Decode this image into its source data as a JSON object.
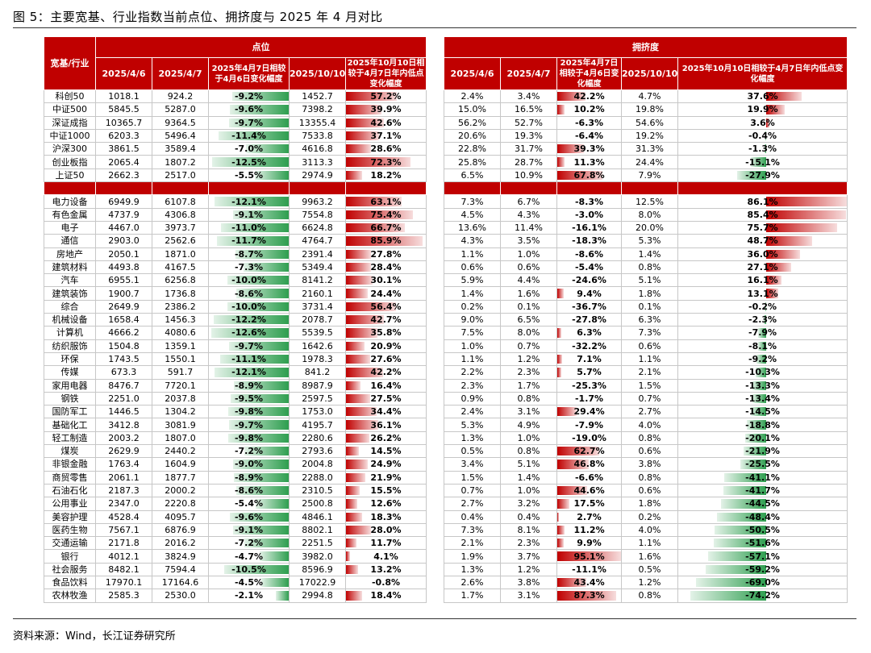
{
  "title": "图 5：主要宽基、行业指数当前点位、拥挤度与 2025 年 4 月对比",
  "source": "资料来源：Wind，长江证券研究所",
  "colors": {
    "header": "#c00000",
    "up": "#c00000",
    "down": "#2e9e4f"
  },
  "header": {
    "row_label": "宽基/行业",
    "group_points": "点位",
    "group_crowd": "拥挤度",
    "points_cols": [
      "2025/4/6",
      "2025/4/7",
      "2025年4月7日相较于4月6日变化幅度",
      "2025/10/10",
      "2025年10月10日相较于4月7日年内低点变化幅度"
    ],
    "crowd_cols": [
      "2025/4/6",
      "2025/4/7",
      "2025年4月7日相较于4月6日变化幅度",
      "2025/10/10",
      "2025年10月10日相较于4月7日年内低点变化幅度"
    ]
  },
  "broad_rows": [
    {
      "name": "科创50",
      "p1": "1018.1",
      "p2": "924.2",
      "pc": "-9.2%",
      "pcv": -9.2,
      "p3": "1452.7",
      "pd": "57.2%",
      "pdv": 57.2,
      "c1": "2.4%",
      "c2": "3.4%",
      "cc": "42.2%",
      "ccv": 42.2,
      "c3": "4.7%",
      "cd": "37.6%",
      "cdv": 37.6
    },
    {
      "name": "中证500",
      "p1": "5845.5",
      "p2": "5287.0",
      "pc": "-9.6%",
      "pcv": -9.6,
      "p3": "7398.2",
      "pd": "39.9%",
      "pdv": 39.9,
      "c1": "15.0%",
      "c2": "16.5%",
      "cc": "10.2%",
      "ccv": 10.2,
      "c3": "19.8%",
      "cd": "19.9%",
      "cdv": 19.9
    },
    {
      "name": "深证成指",
      "p1": "10365.7",
      "p2": "9364.5",
      "pc": "-9.7%",
      "pcv": -9.7,
      "p3": "13355.4",
      "pd": "42.6%",
      "pdv": 42.6,
      "c1": "56.2%",
      "c2": "52.7%",
      "cc": "-6.3%",
      "ccv": -6.3,
      "c3": "54.6%",
      "cd": "3.6%",
      "cdv": 3.6
    },
    {
      "name": "中证1000",
      "p1": "6203.3",
      "p2": "5496.4",
      "pc": "-11.4%",
      "pcv": -11.4,
      "p3": "7533.8",
      "pd": "37.1%",
      "pdv": 37.1,
      "c1": "20.6%",
      "c2": "19.3%",
      "cc": "-6.4%",
      "ccv": -6.4,
      "c3": "19.2%",
      "cd": "-0.4%",
      "cdv": -0.4
    },
    {
      "name": "沪深300",
      "p1": "3861.5",
      "p2": "3589.4",
      "pc": "-7.0%",
      "pcv": -7.0,
      "p3": "4616.8",
      "pd": "28.6%",
      "pdv": 28.6,
      "c1": "22.8%",
      "c2": "31.7%",
      "cc": "39.3%",
      "ccv": 39.3,
      "c3": "31.3%",
      "cd": "-1.3%",
      "cdv": -1.3
    },
    {
      "name": "创业板指",
      "p1": "2065.4",
      "p2": "1807.2",
      "pc": "-12.5%",
      "pcv": -12.5,
      "p3": "3113.3",
      "pd": "72.3%",
      "pdv": 72.3,
      "c1": "25.8%",
      "c2": "28.7%",
      "cc": "11.3%",
      "ccv": 11.3,
      "c3": "24.4%",
      "cd": "-15.1%",
      "cdv": -15.1
    },
    {
      "name": "上证50",
      "p1": "2662.3",
      "p2": "2517.0",
      "pc": "-5.5%",
      "pcv": -5.5,
      "p3": "2974.9",
      "pd": "18.2%",
      "pdv": 18.2,
      "c1": "6.5%",
      "c2": "10.9%",
      "cc": "67.8%",
      "ccv": 67.8,
      "c3": "7.9%",
      "cd": "-27.9%",
      "cdv": -27.9
    }
  ],
  "industry_rows": [
    {
      "name": "电力设备",
      "p1": "6949.9",
      "p2": "6107.8",
      "pc": "-12.1%",
      "pcv": -12.1,
      "p3": "9963.2",
      "pd": "63.1%",
      "pdv": 63.1,
      "c1": "7.3%",
      "c2": "6.7%",
      "cc": "-8.3%",
      "ccv": -8.3,
      "c3": "12.5%",
      "cd": "86.1%",
      "cdv": 86.1
    },
    {
      "name": "有色金属",
      "p1": "4737.9",
      "p2": "4306.8",
      "pc": "-9.1%",
      "pcv": -9.1,
      "p3": "7554.8",
      "pd": "75.4%",
      "pdv": 75.4,
      "c1": "4.5%",
      "c2": "4.3%",
      "cc": "-3.0%",
      "ccv": -3.0,
      "c3": "8.0%",
      "cd": "85.4%",
      "cdv": 85.4
    },
    {
      "name": "电子",
      "p1": "4467.0",
      "p2": "3973.7",
      "pc": "-11.0%",
      "pcv": -11.0,
      "p3": "6624.8",
      "pd": "66.7%",
      "pdv": 66.7,
      "c1": "13.6%",
      "c2": "11.4%",
      "cc": "-16.1%",
      "ccv": -16.1,
      "c3": "20.0%",
      "cd": "75.7%",
      "cdv": 75.7
    },
    {
      "name": "通信",
      "p1": "2903.0",
      "p2": "2562.6",
      "pc": "-11.7%",
      "pcv": -11.7,
      "p3": "4764.7",
      "pd": "85.9%",
      "pdv": 85.9,
      "c1": "4.3%",
      "c2": "3.5%",
      "cc": "-18.3%",
      "ccv": -18.3,
      "c3": "5.3%",
      "cd": "48.7%",
      "cdv": 48.7
    },
    {
      "name": "房地产",
      "p1": "2050.1",
      "p2": "1871.0",
      "pc": "-8.7%",
      "pcv": -8.7,
      "p3": "2391.4",
      "pd": "27.8%",
      "pdv": 27.8,
      "c1": "1.1%",
      "c2": "1.0%",
      "cc": "-8.6%",
      "ccv": -8.6,
      "c3": "1.4%",
      "cd": "36.0%",
      "cdv": 36.0
    },
    {
      "name": "建筑材料",
      "p1": "4493.8",
      "p2": "4167.5",
      "pc": "-7.3%",
      "pcv": -7.3,
      "p3": "5349.4",
      "pd": "28.4%",
      "pdv": 28.4,
      "c1": "0.6%",
      "c2": "0.6%",
      "cc": "-5.4%",
      "ccv": -5.4,
      "c3": "0.8%",
      "cd": "27.1%",
      "cdv": 27.1
    },
    {
      "name": "汽车",
      "p1": "6955.1",
      "p2": "6256.8",
      "pc": "-10.0%",
      "pcv": -10.0,
      "p3": "8141.2",
      "pd": "30.1%",
      "pdv": 30.1,
      "c1": "5.9%",
      "c2": "4.4%",
      "cc": "-24.6%",
      "ccv": -24.6,
      "c3": "5.1%",
      "cd": "16.1%",
      "cdv": 16.1
    },
    {
      "name": "建筑装饰",
      "p1": "1900.7",
      "p2": "1736.8",
      "pc": "-8.6%",
      "pcv": -8.6,
      "p3": "2160.1",
      "pd": "24.4%",
      "pdv": 24.4,
      "c1": "1.4%",
      "c2": "1.6%",
      "cc": "9.4%",
      "ccv": 9.4,
      "c3": "1.8%",
      "cd": "13.1%",
      "cdv": 13.1
    },
    {
      "name": "综合",
      "p1": "2649.9",
      "p2": "2386.2",
      "pc": "-10.0%",
      "pcv": -10.0,
      "p3": "3731.4",
      "pd": "56.4%",
      "pdv": 56.4,
      "c1": "0.2%",
      "c2": "0.1%",
      "cc": "-36.7%",
      "ccv": -36.7,
      "c3": "0.1%",
      "cd": "-0.2%",
      "cdv": -0.2
    },
    {
      "name": "机械设备",
      "p1": "1658.4",
      "p2": "1456.3",
      "pc": "-12.2%",
      "pcv": -12.2,
      "p3": "2078.7",
      "pd": "42.7%",
      "pdv": 42.7,
      "c1": "9.0%",
      "c2": "6.5%",
      "cc": "-27.8%",
      "ccv": -27.8,
      "c3": "6.3%",
      "cd": "-2.3%",
      "cdv": -2.3
    },
    {
      "name": "计算机",
      "p1": "4666.2",
      "p2": "4080.6",
      "pc": "-12.6%",
      "pcv": -12.6,
      "p3": "5539.5",
      "pd": "35.8%",
      "pdv": 35.8,
      "c1": "7.5%",
      "c2": "8.0%",
      "cc": "6.3%",
      "ccv": 6.3,
      "c3": "7.3%",
      "cd": "-7.9%",
      "cdv": -7.9
    },
    {
      "name": "纺织服饰",
      "p1": "1504.8",
      "p2": "1359.1",
      "pc": "-9.7%",
      "pcv": -9.7,
      "p3": "1642.6",
      "pd": "20.9%",
      "pdv": 20.9,
      "c1": "1.0%",
      "c2": "0.7%",
      "cc": "-32.2%",
      "ccv": -32.2,
      "c3": "0.6%",
      "cd": "-8.1%",
      "cdv": -8.1
    },
    {
      "name": "环保",
      "p1": "1743.5",
      "p2": "1550.1",
      "pc": "-11.1%",
      "pcv": -11.1,
      "p3": "1978.3",
      "pd": "27.6%",
      "pdv": 27.6,
      "c1": "1.1%",
      "c2": "1.2%",
      "cc": "7.1%",
      "ccv": 7.1,
      "c3": "1.1%",
      "cd": "-9.2%",
      "cdv": -9.2
    },
    {
      "name": "传媒",
      "p1": "673.3",
      "p2": "591.7",
      "pc": "-12.1%",
      "pcv": -12.1,
      "p3": "841.2",
      "pd": "42.2%",
      "pdv": 42.2,
      "c1": "2.2%",
      "c2": "2.3%",
      "cc": "5.7%",
      "ccv": 5.7,
      "c3": "2.1%",
      "cd": "-10.3%",
      "cdv": -10.3
    },
    {
      "name": "家用电器",
      "p1": "8476.7",
      "p2": "7720.1",
      "pc": "-8.9%",
      "pcv": -8.9,
      "p3": "8987.9",
      "pd": "16.4%",
      "pdv": 16.4,
      "c1": "2.3%",
      "c2": "1.7%",
      "cc": "-25.3%",
      "ccv": -25.3,
      "c3": "1.5%",
      "cd": "-13.3%",
      "cdv": -13.3
    },
    {
      "name": "钢铁",
      "p1": "2251.0",
      "p2": "2037.8",
      "pc": "-9.5%",
      "pcv": -9.5,
      "p3": "2597.5",
      "pd": "27.5%",
      "pdv": 27.5,
      "c1": "0.9%",
      "c2": "0.8%",
      "cc": "-1.7%",
      "ccv": -1.7,
      "c3": "0.7%",
      "cd": "-13.4%",
      "cdv": -13.4
    },
    {
      "name": "国防军工",
      "p1": "1446.5",
      "p2": "1304.2",
      "pc": "-9.8%",
      "pcv": -9.8,
      "p3": "1753.0",
      "pd": "34.4%",
      "pdv": 34.4,
      "c1": "2.4%",
      "c2": "3.1%",
      "cc": "29.4%",
      "ccv": 29.4,
      "c3": "2.7%",
      "cd": "-14.5%",
      "cdv": -14.5
    },
    {
      "name": "基础化工",
      "p1": "3412.8",
      "p2": "3081.9",
      "pc": "-9.7%",
      "pcv": -9.7,
      "p3": "4195.7",
      "pd": "36.1%",
      "pdv": 36.1,
      "c1": "5.3%",
      "c2": "4.9%",
      "cc": "-7.9%",
      "ccv": -7.9,
      "c3": "4.0%",
      "cd": "-18.8%",
      "cdv": -18.8
    },
    {
      "name": "轻工制造",
      "p1": "2003.2",
      "p2": "1807.0",
      "pc": "-9.8%",
      "pcv": -9.8,
      "p3": "2280.6",
      "pd": "26.2%",
      "pdv": 26.2,
      "c1": "1.3%",
      "c2": "1.0%",
      "cc": "-19.0%",
      "ccv": -19.0,
      "c3": "0.8%",
      "cd": "-20.1%",
      "cdv": -20.1
    },
    {
      "name": "煤炭",
      "p1": "2629.9",
      "p2": "2440.2",
      "pc": "-7.2%",
      "pcv": -7.2,
      "p3": "2793.6",
      "pd": "14.5%",
      "pdv": 14.5,
      "c1": "0.5%",
      "c2": "0.8%",
      "cc": "62.7%",
      "ccv": 62.7,
      "c3": "0.6%",
      "cd": "-21.9%",
      "cdv": -21.9
    },
    {
      "name": "非银金融",
      "p1": "1763.4",
      "p2": "1604.9",
      "pc": "-9.0%",
      "pcv": -9.0,
      "p3": "2004.8",
      "pd": "24.9%",
      "pdv": 24.9,
      "c1": "3.4%",
      "c2": "5.1%",
      "cc": "46.8%",
      "ccv": 46.8,
      "c3": "3.8%",
      "cd": "-25.5%",
      "cdv": -25.5
    },
    {
      "name": "商贸零售",
      "p1": "2061.1",
      "p2": "1877.7",
      "pc": "-8.9%",
      "pcv": -8.9,
      "p3": "2288.0",
      "pd": "21.9%",
      "pdv": 21.9,
      "c1": "1.5%",
      "c2": "1.4%",
      "cc": "-6.6%",
      "ccv": -6.6,
      "c3": "0.8%",
      "cd": "-41.1%",
      "cdv": -41.1
    },
    {
      "name": "石油石化",
      "p1": "2187.3",
      "p2": "2000.2",
      "pc": "-8.6%",
      "pcv": -8.6,
      "p3": "2310.5",
      "pd": "15.5%",
      "pdv": 15.5,
      "c1": "0.7%",
      "c2": "1.0%",
      "cc": "44.6%",
      "ccv": 44.6,
      "c3": "0.6%",
      "cd": "-41.7%",
      "cdv": -41.7
    },
    {
      "name": "公用事业",
      "p1": "2347.0",
      "p2": "2220.8",
      "pc": "-5.4%",
      "pcv": -5.4,
      "p3": "2500.8",
      "pd": "12.6%",
      "pdv": 12.6,
      "c1": "2.7%",
      "c2": "3.2%",
      "cc": "17.5%",
      "ccv": 17.5,
      "c3": "1.8%",
      "cd": "-44.5%",
      "cdv": -44.5
    },
    {
      "name": "美容护理",
      "p1": "4528.4",
      "p2": "4095.7",
      "pc": "-9.6%",
      "pcv": -9.6,
      "p3": "4846.1",
      "pd": "18.3%",
      "pdv": 18.3,
      "c1": "0.4%",
      "c2": "0.4%",
      "cc": "2.7%",
      "ccv": 2.7,
      "c3": "0.2%",
      "cd": "-48.4%",
      "cdv": -48.4
    },
    {
      "name": "医药生物",
      "p1": "7567.1",
      "p2": "6876.9",
      "pc": "-9.1%",
      "pcv": -9.1,
      "p3": "8802.1",
      "pd": "28.0%",
      "pdv": 28.0,
      "c1": "7.3%",
      "c2": "8.1%",
      "cc": "11.2%",
      "ccv": 11.2,
      "c3": "4.0%",
      "cd": "-50.5%",
      "cdv": -50.5
    },
    {
      "name": "交通运输",
      "p1": "2171.8",
      "p2": "2016.2",
      "pc": "-7.2%",
      "pcv": -7.2,
      "p3": "2251.5",
      "pd": "11.7%",
      "pdv": 11.7,
      "c1": "2.1%",
      "c2": "2.3%",
      "cc": "9.9%",
      "ccv": 9.9,
      "c3": "1.1%",
      "cd": "-51.6%",
      "cdv": -51.6
    },
    {
      "name": "银行",
      "p1": "4012.1",
      "p2": "3824.9",
      "pc": "-4.7%",
      "pcv": -4.7,
      "p3": "3982.0",
      "pd": "4.1%",
      "pdv": 4.1,
      "c1": "1.9%",
      "c2": "3.7%",
      "cc": "95.1%",
      "ccv": 95.1,
      "c3": "1.6%",
      "cd": "-57.1%",
      "cdv": -57.1
    },
    {
      "name": "社会服务",
      "p1": "8482.1",
      "p2": "7594.4",
      "pc": "-10.5%",
      "pcv": -10.5,
      "p3": "8596.9",
      "pd": "13.2%",
      "pdv": 13.2,
      "c1": "1.3%",
      "c2": "1.2%",
      "cc": "-11.1%",
      "ccv": -11.1,
      "c3": "0.5%",
      "cd": "-59.2%",
      "cdv": -59.2
    },
    {
      "name": "食品饮料",
      "p1": "17970.1",
      "p2": "17164.6",
      "pc": "-4.5%",
      "pcv": -4.5,
      "p3": "17022.9",
      "pd": "-0.8%",
      "pdv": -0.8,
      "c1": "2.6%",
      "c2": "3.8%",
      "cc": "43.4%",
      "ccv": 43.4,
      "c3": "1.2%",
      "cd": "-69.0%",
      "cdv": -69.0
    },
    {
      "name": "农林牧渔",
      "p1": "2585.3",
      "p2": "2530.0",
      "pc": "-2.1%",
      "pcv": -2.1,
      "p3": "2994.8",
      "pd": "18.4%",
      "pdv": 18.4,
      "c1": "1.7%",
      "c2": "3.1%",
      "cc": "87.3%",
      "ccv": 87.3,
      "c3": "0.8%",
      "cd": "-74.2%",
      "cdv": -74.2
    }
  ]
}
